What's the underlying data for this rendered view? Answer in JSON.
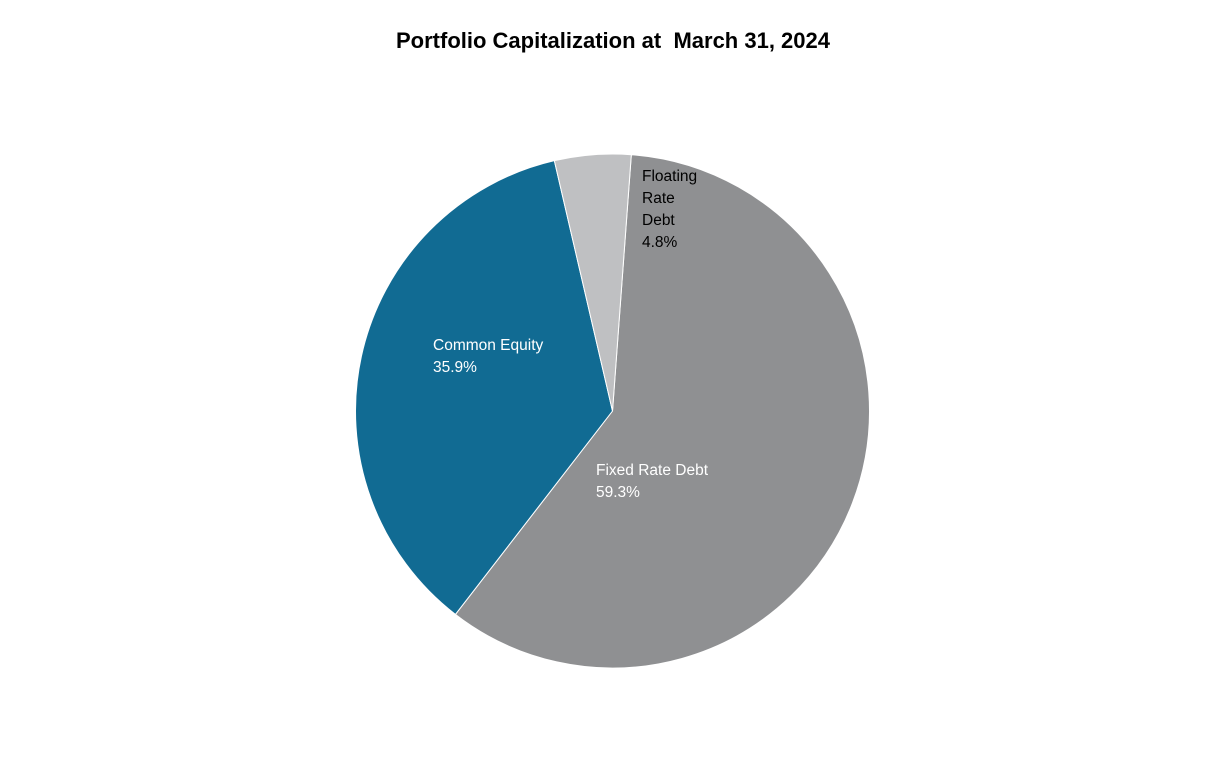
{
  "chart_data": {
    "type": "pie",
    "title": "Portfolio Capitalization at  March 31, 2024",
    "slices": [
      {
        "name": "Fixed Rate Debt",
        "value": 59.3,
        "value_label": "59.3%",
        "label_lines": [
          "Fixed Rate Debt"
        ],
        "color": "#8f9092",
        "label_color": "#ffffff"
      },
      {
        "name": "Common Equity",
        "value": 35.9,
        "value_label": "35.9%",
        "label_lines": [
          "Common Equity"
        ],
        "color": "#116b93",
        "label_color": "#ffffff"
      },
      {
        "name": "Floating Rate Debt",
        "value": 4.8,
        "value_label": "4.8%",
        "label_lines": [
          "Floating",
          "Rate",
          "Debt"
        ],
        "color": "#bfc0c2",
        "label_color": "#000000"
      }
    ],
    "legend": "none"
  }
}
